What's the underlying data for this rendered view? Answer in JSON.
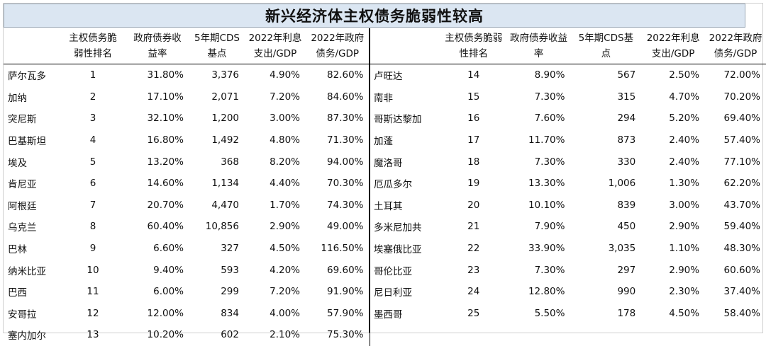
{
  "title": "新兴经济体主权债务脆弱性较高",
  "left_headers": [
    [
      "",
      ""
    ],
    [
      "主权债务脆",
      "弱性排名"
    ],
    [
      "政府债券收",
      "益率"
    ],
    [
      "5年期CDS",
      "基点"
    ],
    [
      "2022年利息",
      "支出/GDP"
    ],
    [
      "2022年政府",
      "债务/GDP"
    ]
  ],
  "right_headers": [
    [
      "",
      ""
    ],
    [
      "主权债务脆弱",
      "性排名"
    ],
    [
      "政府债券收益",
      "率"
    ],
    [
      "5年期CDS基",
      "点"
    ],
    [
      "2022年利息",
      "支出/GDP"
    ],
    [
      "2022年政府",
      "债务/GDP"
    ]
  ],
  "left_rows": [
    [
      "萨尔瓦多",
      "1",
      "31.80%",
      "3,376",
      "4.90%",
      "82.60%"
    ],
    [
      "加纳",
      "2",
      "17.10%",
      "2,071",
      "7.20%",
      "84.60%"
    ],
    [
      "突尼斯",
      "3",
      "32.10%",
      "1,200",
      "3.00%",
      "87.30%"
    ],
    [
      "巴基斯坦",
      "4",
      "16.80%",
      "1,492",
      "4.80%",
      "71.30%"
    ],
    [
      "埃及",
      "5",
      "13.20%",
      "368",
      "8.20%",
      "94.00%"
    ],
    [
      "肯尼亚",
      "6",
      "14.60%",
      "1,134",
      "4.40%",
      "70.30%"
    ],
    [
      "阿根廷",
      "7",
      "20.70%",
      "4,470",
      "1.70%",
      "74.30%"
    ],
    [
      "乌克兰",
      "8",
      "60.40%",
      "10,856",
      "2.90%",
      "49.00%"
    ],
    [
      "巴林",
      "9",
      "6.60%",
      "327",
      "4.50%",
      "116.50%"
    ],
    [
      "纳米比亚",
      "10",
      "9.40%",
      "593",
      "4.20%",
      "69.60%"
    ],
    [
      "巴西",
      "11",
      "6.00%",
      "299",
      "7.20%",
      "91.90%"
    ],
    [
      "安哥拉",
      "12",
      "12.00%",
      "834",
      "4.00%",
      "57.90%"
    ],
    [
      "塞内加尔",
      "13",
      "10.20%",
      "602",
      "2.10%",
      "75.30%"
    ]
  ],
  "right_rows": [
    [
      "卢旺达",
      "14",
      "8.90%",
      "567",
      "2.50%",
      "72.00%"
    ],
    [
      "南非",
      "15",
      "7.30%",
      "315",
      "4.70%",
      "70.20%"
    ],
    [
      "哥斯达黎加",
      "16",
      "7.60%",
      "294",
      "5.20%",
      "69.40%"
    ],
    [
      "加蓬",
      "17",
      "11.70%",
      "873",
      "2.40%",
      "57.40%"
    ],
    [
      "魔洛哥",
      "18",
      "7.30%",
      "330",
      "2.40%",
      "77.10%"
    ],
    [
      "厄瓜多尔",
      "19",
      "13.30%",
      "1,006",
      "1.30%",
      "62.20%"
    ],
    [
      "土耳其",
      "20",
      "10.10%",
      "839",
      "3.00%",
      "43.70%"
    ],
    [
      "多米尼加共",
      "21",
      "7.90%",
      "450",
      "2.90%",
      "59.40%"
    ],
    [
      "埃塞俄比亚",
      "22",
      "33.90%",
      "3,035",
      "1.10%",
      "48.30%"
    ],
    [
      "哥伦比亚",
      "23",
      "7.30%",
      "297",
      "2.90%",
      "60.60%"
    ],
    [
      "尼日利亚",
      "24",
      "12.80%",
      "990",
      "2.30%",
      "37.40%"
    ],
    [
      "墨西哥",
      "25",
      "5.50%",
      "178",
      "4.50%",
      "58.40%"
    ]
  ],
  "colors": {
    "title_bg": "#dbe6f2",
    "title_border": "#9aa7b6",
    "rule": "#000000"
  }
}
